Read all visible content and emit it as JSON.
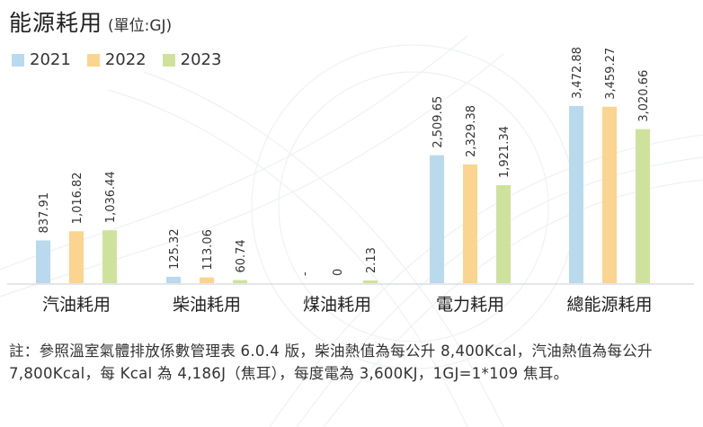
{
  "title": "能源耗用",
  "unit": "(單位:GJ)",
  "legend": [
    {
      "label": "2021",
      "color": "#b9d9ec"
    },
    {
      "label": "2022",
      "color": "#fbd48f"
    },
    {
      "label": "2023",
      "color": "#cfe29c"
    }
  ],
  "note": "註：參照溫室氣體排放係數管理表 6.0.4 版，柴油熱值為每公升 8,400Kcal，汽油熱值為每公升 7,800Kcal，每 Kcal 為 4,186J（焦耳），每度電為 3,600KJ，1GJ=1*109 焦耳。",
  "chart_data": {
    "type": "bar",
    "categories": [
      "汽油耗用",
      "柴油耗用",
      "煤油耗用",
      "電力耗用",
      "總能源耗用"
    ],
    "series": [
      {
        "name": "2021",
        "values": [
          837.91,
          125.32,
          null,
          2509.65,
          3472.88
        ],
        "labels": [
          "837.91",
          "125.32",
          "-",
          "2,509.65",
          "3,472.88"
        ]
      },
      {
        "name": "2022",
        "values": [
          1016.82,
          113.06,
          0,
          2329.38,
          3459.27
        ],
        "labels": [
          "1,016.82",
          "113.06",
          "0",
          "2,329.38",
          "3,459.27"
        ]
      },
      {
        "name": "2023",
        "values": [
          1036.44,
          60.74,
          2.13,
          1921.34,
          3020.66
        ],
        "labels": [
          "1,036.44",
          "60.74",
          "2.13",
          "1,921.34",
          "3,020.66"
        ]
      }
    ],
    "ylim": [
      0,
      3500
    ],
    "grid": false,
    "legend_position": "top-left"
  }
}
